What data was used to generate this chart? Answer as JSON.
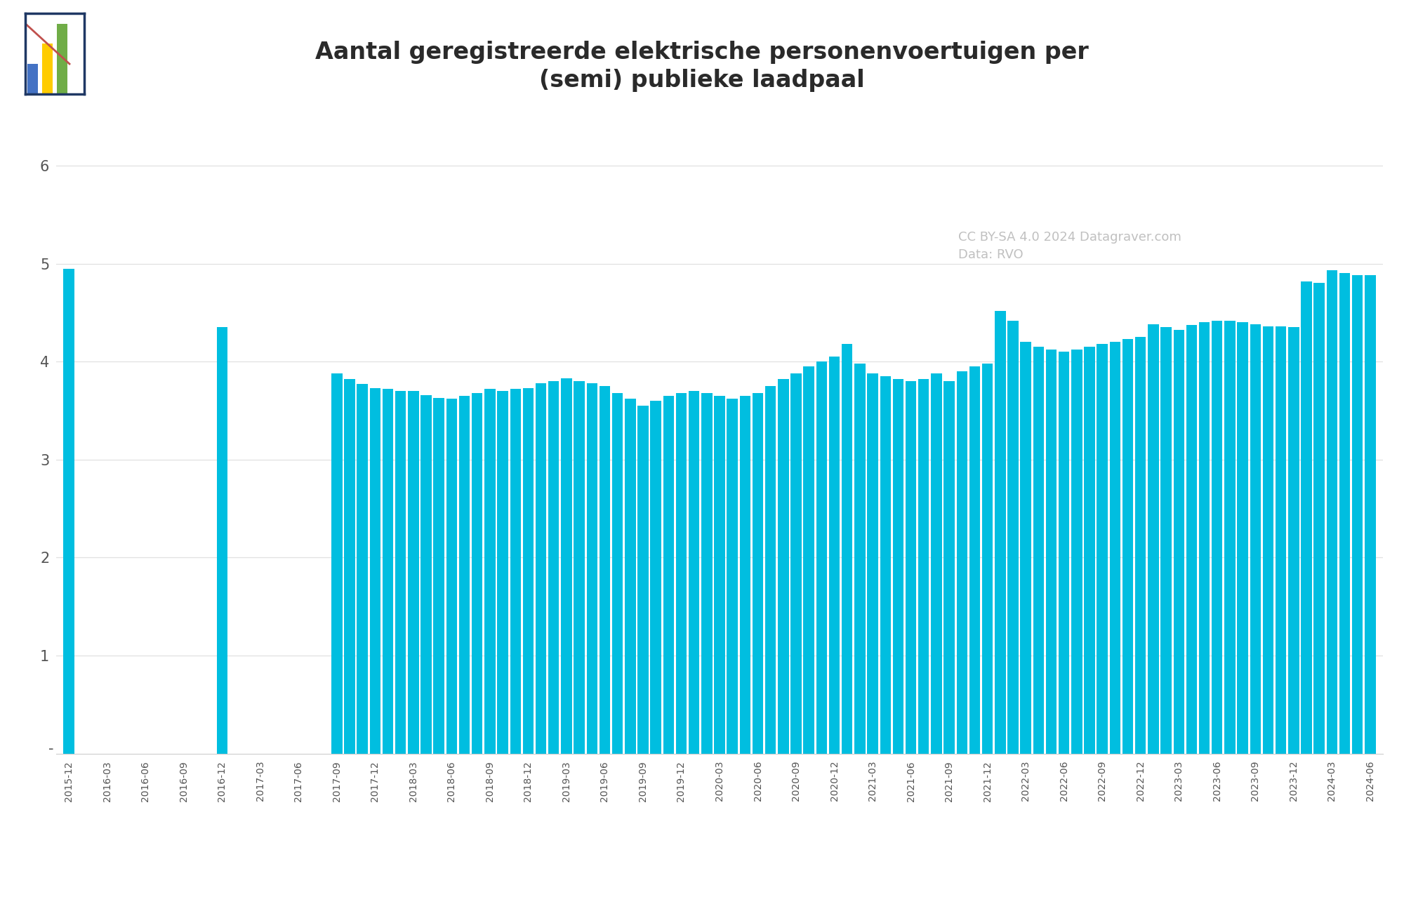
{
  "title_line1": "Aantal geregistreerde elektrische personenvoertuigen per",
  "title_line2": "(semi) publieke laadpaal",
  "bar_color": "#00BEE0",
  "background_color": "#ffffff",
  "watermark_line1": "CC BY-SA 4.0 2024 Datagraver.com",
  "watermark_line2": "Data: RVO",
  "ylim_max": 6.5,
  "yticks": [
    1,
    2,
    3,
    4,
    5,
    6
  ],
  "monthly_values": {
    "2015-12": 4.95,
    "2016-12": 4.35,
    "2017-09": 3.88,
    "2017-10": 3.82,
    "2017-11": 3.77,
    "2017-12": 3.73,
    "2018-01": 3.72,
    "2018-02": 3.7,
    "2018-03": 3.7,
    "2018-04": 3.66,
    "2018-05": 3.63,
    "2018-06": 3.62,
    "2018-07": 3.65,
    "2018-08": 3.68,
    "2018-09": 3.72,
    "2018-10": 3.7,
    "2018-11": 3.72,
    "2018-12": 3.73,
    "2019-01": 3.78,
    "2019-02": 3.8,
    "2019-03": 3.83,
    "2019-04": 3.8,
    "2019-05": 3.78,
    "2019-06": 3.75,
    "2019-07": 3.68,
    "2019-08": 3.62,
    "2019-09": 3.55,
    "2019-10": 3.6,
    "2019-11": 3.65,
    "2019-12": 3.68,
    "2020-01": 3.7,
    "2020-02": 3.68,
    "2020-03": 3.65,
    "2020-04": 3.62,
    "2020-05": 3.65,
    "2020-06": 3.68,
    "2020-07": 3.75,
    "2020-08": 3.82,
    "2020-09": 3.88,
    "2020-10": 3.95,
    "2020-11": 4.0,
    "2020-12": 4.05,
    "2021-01": 4.18,
    "2021-02": 3.98,
    "2021-03": 3.88,
    "2021-04": 3.85,
    "2021-05": 3.82,
    "2021-06": 3.8,
    "2021-07": 3.82,
    "2021-08": 3.88,
    "2021-09": 3.8,
    "2021-10": 3.9,
    "2021-11": 3.95,
    "2021-12": 3.98,
    "2022-01": 4.52,
    "2022-02": 4.42,
    "2022-03": 4.2,
    "2022-04": 4.15,
    "2022-05": 4.12,
    "2022-06": 4.1,
    "2022-07": 4.12,
    "2022-08": 4.15,
    "2022-09": 4.18,
    "2022-10": 4.2,
    "2022-11": 4.23,
    "2022-12": 4.25,
    "2023-01": 4.38,
    "2023-02": 4.35,
    "2023-03": 4.32,
    "2023-04": 4.37,
    "2023-05": 4.4,
    "2023-06": 4.42,
    "2023-07": 4.42,
    "2023-08": 4.4,
    "2023-09": 4.38,
    "2023-10": 4.36,
    "2023-11": 4.36,
    "2023-12": 4.35,
    "2024-01": 4.82,
    "2024-02": 4.8,
    "2024-03": 4.93,
    "2024-04": 4.9,
    "2024-05": 4.88,
    "2024-06": 4.88
  }
}
